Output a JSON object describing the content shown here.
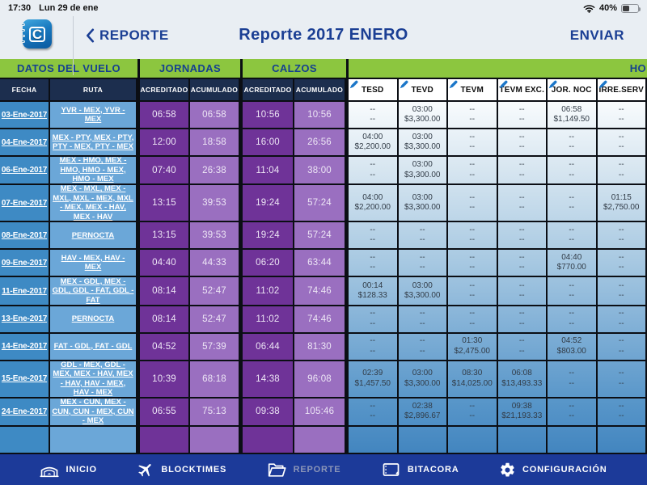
{
  "status_bar": {
    "time": "17:30",
    "date": "Lun 29 de ene",
    "battery": "40%"
  },
  "nav": {
    "app_logo": "C",
    "back_label": "REPORTE",
    "title": "Reporte 2017 ENERO",
    "action_label": "ENVIAR"
  },
  "colors": {
    "header_green": "#8CC63F",
    "navy_blue": "#1B3F94",
    "subheader_navy": "#1C2E4E",
    "date_blue": "#3E8AC4",
    "route_blue": "#6BA7D8",
    "purple_dark": "#6F3398",
    "purple_light": "#9A6FC0",
    "tabbar_blue": "#1C3A99"
  },
  "table": {
    "groups": {
      "datos": "DATOS DEL VUELO",
      "jornadas": "JORNADAS",
      "calzos": "CALZOS",
      "honorarios": "HO"
    },
    "subheaders": {
      "fecha": "FECHA",
      "ruta": "RUTA",
      "acreditado": "ACREDITADO",
      "acumulado": "ACUMULADO"
    },
    "honor_columns": [
      "TESD",
      "TEVD",
      "TEVM",
      "TEVM EXC.",
      "JOR. NOC",
      "IRRE.SERV"
    ],
    "rows": [
      {
        "fecha": "03-Ene-2017",
        "ruta": "YVR - MEX, YVR - MEX",
        "j_acred": "06:58",
        "j_acum": "06:58",
        "c_acred": "10:56",
        "c_acum": "10:56",
        "honor": [
          {
            "t": "--",
            "m": "--"
          },
          {
            "t": "03:00",
            "m": "$3,300.00"
          },
          {
            "t": "--",
            "m": "--"
          },
          {
            "t": "--",
            "m": "--"
          },
          {
            "t": "06:58",
            "m": "$1,149.50"
          },
          {
            "t": "--",
            "m": "--"
          }
        ]
      },
      {
        "fecha": "04-Ene-2017",
        "ruta": "MEX - PTY, MEX - PTY, PTY - MEX, PTY - MEX",
        "j_acred": "12:00",
        "j_acum": "18:58",
        "c_acred": "16:00",
        "c_acum": "26:56",
        "honor": [
          {
            "t": "04:00",
            "m": "$2,200.00"
          },
          {
            "t": "03:00",
            "m": "$3,300.00"
          },
          {
            "t": "--",
            "m": "--"
          },
          {
            "t": "--",
            "m": "--"
          },
          {
            "t": "--",
            "m": "--"
          },
          {
            "t": "--",
            "m": "--"
          }
        ]
      },
      {
        "fecha": "06-Ene-2017",
        "ruta": "MEX - HMO, MEX - HMO, HMO - MEX, HMO - MEX",
        "j_acred": "07:40",
        "j_acum": "26:38",
        "c_acred": "11:04",
        "c_acum": "38:00",
        "honor": [
          {
            "t": "--",
            "m": "--"
          },
          {
            "t": "03:00",
            "m": "$3,300.00"
          },
          {
            "t": "--",
            "m": "--"
          },
          {
            "t": "--",
            "m": "--"
          },
          {
            "t": "--",
            "m": "--"
          },
          {
            "t": "--",
            "m": "--"
          }
        ]
      },
      {
        "fecha": "07-Ene-2017",
        "ruta": "MEX - MXL, MEX - MXL, MXL - MEX, MXL - MEX, MEX - HAV, MEX - HAV",
        "j_acred": "13:15",
        "j_acum": "39:53",
        "c_acred": "19:24",
        "c_acum": "57:24",
        "honor": [
          {
            "t": "04:00",
            "m": "$2,200.00"
          },
          {
            "t": "03:00",
            "m": "$3,300.00"
          },
          {
            "t": "--",
            "m": "--"
          },
          {
            "t": "--",
            "m": "--"
          },
          {
            "t": "--",
            "m": "--"
          },
          {
            "t": "01:15",
            "m": "$2,750.00"
          }
        ]
      },
      {
        "fecha": "08-Ene-2017",
        "ruta": "PERNOCTA",
        "j_acred": "13:15",
        "j_acum": "39:53",
        "c_acred": "19:24",
        "c_acum": "57:24",
        "honor": [
          {
            "t": "--",
            "m": "--"
          },
          {
            "t": "--",
            "m": "--"
          },
          {
            "t": "--",
            "m": "--"
          },
          {
            "t": "--",
            "m": "--"
          },
          {
            "t": "--",
            "m": "--"
          },
          {
            "t": "--",
            "m": "--"
          }
        ]
      },
      {
        "fecha": "09-Ene-2017",
        "ruta": "HAV - MEX, HAV - MEX",
        "j_acred": "04:40",
        "j_acum": "44:33",
        "c_acred": "06:20",
        "c_acum": "63:44",
        "honor": [
          {
            "t": "--",
            "m": "--"
          },
          {
            "t": "--",
            "m": "--"
          },
          {
            "t": "--",
            "m": "--"
          },
          {
            "t": "--",
            "m": "--"
          },
          {
            "t": "04:40",
            "m": "$770.00"
          },
          {
            "t": "--",
            "m": "--"
          }
        ]
      },
      {
        "fecha": "11-Ene-2017",
        "ruta": "MEX - GDL, MEX - GDL, GDL - FAT, GDL - FAT",
        "j_acred": "08:14",
        "j_acum": "52:47",
        "c_acred": "11:02",
        "c_acum": "74:46",
        "honor": [
          {
            "t": "00:14",
            "m": "$128.33"
          },
          {
            "t": "03:00",
            "m": "$3,300.00"
          },
          {
            "t": "--",
            "m": "--"
          },
          {
            "t": "--",
            "m": "--"
          },
          {
            "t": "--",
            "m": "--"
          },
          {
            "t": "--",
            "m": "--"
          }
        ]
      },
      {
        "fecha": "13-Ene-2017",
        "ruta": "PERNOCTA",
        "j_acred": "08:14",
        "j_acum": "52:47",
        "c_acred": "11:02",
        "c_acum": "74:46",
        "honor": [
          {
            "t": "--",
            "m": "--"
          },
          {
            "t": "--",
            "m": "--"
          },
          {
            "t": "--",
            "m": "--"
          },
          {
            "t": "--",
            "m": "--"
          },
          {
            "t": "--",
            "m": "--"
          },
          {
            "t": "--",
            "m": "--"
          }
        ]
      },
      {
        "fecha": "14-Ene-2017",
        "ruta": "FAT - GDL, FAT - GDL",
        "j_acred": "04:52",
        "j_acum": "57:39",
        "c_acred": "06:44",
        "c_acum": "81:30",
        "honor": [
          {
            "t": "--",
            "m": "--"
          },
          {
            "t": "--",
            "m": "--"
          },
          {
            "t": "01:30",
            "m": "$2,475.00"
          },
          {
            "t": "--",
            "m": "--"
          },
          {
            "t": "04:52",
            "m": "$803.00"
          },
          {
            "t": "--",
            "m": "--"
          }
        ]
      },
      {
        "fecha": "15-Ene-2017",
        "ruta": "GDL - MEX, GDL - MEX, MEX - HAV, MEX - HAV, HAV - MEX, HAV - MEX",
        "j_acred": "10:39",
        "j_acum": "68:18",
        "c_acred": "14:38",
        "c_acum": "96:08",
        "honor": [
          {
            "t": "02:39",
            "m": "$1,457.50"
          },
          {
            "t": "03:00",
            "m": "$3,300.00"
          },
          {
            "t": "08:30",
            "m": "$14,025.00"
          },
          {
            "t": "06:08",
            "m": "$13,493.33"
          },
          {
            "t": "--",
            "m": "--"
          },
          {
            "t": "--",
            "m": "--"
          }
        ]
      },
      {
        "fecha": "24-Ene-2017",
        "ruta": "MEX - CUN, MEX - CUN, CUN - MEX, CUN - MEX",
        "j_acred": "06:55",
        "j_acum": "75:13",
        "c_acred": "09:38",
        "c_acum": "105:46",
        "honor": [
          {
            "t": "--",
            "m": "--"
          },
          {
            "t": "02:38",
            "m": "$2,896.67"
          },
          {
            "t": "--",
            "m": "--"
          },
          {
            "t": "09:38",
            "m": "$21,193.33"
          },
          {
            "t": "--",
            "m": "--"
          },
          {
            "t": "--",
            "m": "--"
          }
        ]
      }
    ]
  },
  "tabbar": {
    "items": [
      {
        "label": "INICIO",
        "icon": "hangar-icon",
        "muted": false
      },
      {
        "label": "BLOCKTIMES",
        "icon": "airplane-icon",
        "muted": false
      },
      {
        "label": "REPORTE",
        "icon": "folder-icon",
        "muted": true
      },
      {
        "label": "BITACORA",
        "icon": "logbook-icon",
        "muted": false
      },
      {
        "label": "CONFIGURACIÓN",
        "icon": "gear-icon",
        "muted": false
      }
    ]
  }
}
